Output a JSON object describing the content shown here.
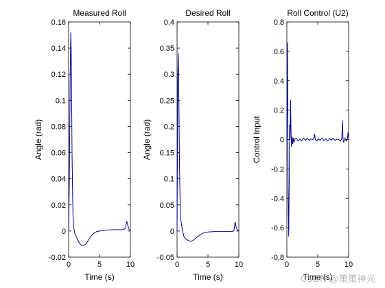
{
  "chart_data": [
    {
      "type": "line",
      "title": "Measured Roll",
      "xlabel": "Time (s)",
      "ylabel": "Angle (rad)",
      "xlim": [
        0,
        10
      ],
      "ylim": [
        -0.02,
        0.16
      ],
      "xticks": [
        0,
        5,
        10
      ],
      "yticks": [
        -0.02,
        0,
        0.02,
        0.04,
        0.06,
        0.08,
        0.1,
        0.12,
        0.14,
        0.16
      ],
      "ytick_labels": [
        "-0.02",
        "0",
        "0.02",
        "0.04",
        "0.06",
        "0.08",
        "0.1",
        "0.12",
        "0.14",
        "0.16"
      ],
      "grid": false,
      "series": [
        {
          "color": "#00008b",
          "x": [
            0,
            0.12,
            0.25,
            0.35,
            0.45,
            0.55,
            0.7,
            0.85,
            1.0,
            1.3,
            1.7,
            2.1,
            2.5,
            2.8,
            3.2,
            3.6,
            4.0,
            4.5,
            5.0,
            6.0,
            7.0,
            8.0,
            8.8,
            9.2,
            9.4,
            9.6,
            9.8,
            10.0
          ],
          "y": [
            0,
            0.04,
            0.12,
            0.152,
            0.13,
            0.06,
            0.012,
            0.002,
            -0.002,
            -0.005,
            -0.009,
            -0.011,
            -0.011,
            -0.01,
            -0.007,
            -0.004,
            -0.002,
            -0.0005,
            0,
            0.0005,
            0.001,
            0.001,
            0.001,
            0.002,
            0.0075,
            0.004,
            0.001,
            0.0005
          ]
        }
      ]
    },
    {
      "type": "line",
      "title": "Desired Roll",
      "xlabel": "Time (s)",
      "ylabel": "Angle (rad)",
      "xlim": [
        0,
        10
      ],
      "ylim": [
        -0.05,
        0.4
      ],
      "xticks": [
        0,
        5,
        10
      ],
      "yticks": [
        -0.05,
        0,
        0.05,
        0.1,
        0.15,
        0.2,
        0.25,
        0.3,
        0.35,
        0.4
      ],
      "ytick_labels": [
        "-0.05",
        "0",
        "0.05",
        "0.1",
        "0.15",
        "0.2",
        "0.25",
        "0.3",
        "0.35",
        "0.4"
      ],
      "grid": false,
      "series": [
        {
          "color": "#00008b",
          "x": [
            0,
            0.12,
            0.2,
            0.3,
            0.4,
            0.5,
            0.62,
            0.75,
            0.9,
            1.1,
            1.4,
            1.8,
            2.2,
            2.6,
            3.0,
            3.4,
            3.8,
            4.2,
            4.6,
            5.0,
            6.0,
            7.0,
            8.0,
            8.8,
            9.2,
            9.4,
            9.6,
            9.8,
            10.0
          ],
          "y": [
            0,
            0.29,
            0.34,
            0.25,
            0.12,
            0.05,
            0.02,
            0.01,
            0.0,
            -0.01,
            -0.015,
            -0.018,
            -0.02,
            -0.018,
            -0.014,
            -0.01,
            -0.007,
            -0.004,
            -0.003,
            -0.002,
            -0.001,
            -0.001,
            -0.001,
            -0.001,
            0.0,
            0.018,
            0.006,
            0.002,
            0.0
          ]
        }
      ]
    },
    {
      "type": "line",
      "title": "Roll Control (U2)",
      "xlabel": "Time (s)",
      "ylabel": "Control Input",
      "xlim": [
        0,
        10
      ],
      "ylim": [
        -0.8,
        0.8
      ],
      "xticks": [
        0,
        5,
        10
      ],
      "yticks": [
        -0.8,
        -0.6,
        -0.4,
        -0.2,
        0,
        0.2,
        0.4,
        0.6,
        0.8
      ],
      "ytick_labels": [
        "-0.8",
        "-0.6",
        "-0.4",
        "-0.2",
        "0",
        "0.2",
        "0.4",
        "0.6",
        "0.8"
      ],
      "grid": false,
      "series": [
        {
          "color": "#00008b",
          "x": [
            0,
            0.05,
            0.1,
            0.15,
            0.22,
            0.3,
            0.38,
            0.45,
            0.52,
            0.6,
            0.68,
            0.75,
            0.85,
            0.95,
            1.05,
            1.15,
            1.25,
            1.5,
            1.8,
            2.1,
            2.4,
            2.7,
            3.0,
            3.3,
            3.6,
            3.9,
            4.2,
            4.4,
            4.5,
            4.6,
            4.8,
            5.1,
            5.4,
            5.7,
            6.0,
            6.3,
            6.6,
            6.9,
            7.2,
            7.5,
            7.8,
            8.1,
            8.4,
            8.7,
            8.9,
            9.0,
            9.1,
            9.2,
            9.4,
            9.6,
            9.8,
            9.9,
            10.0
          ],
          "y": [
            0,
            0.3,
            0.66,
            0.2,
            -0.4,
            -0.66,
            -0.3,
            0.1,
            0.0,
            0.27,
            0.05,
            -0.05,
            0.02,
            -0.03,
            0.01,
            -0.02,
            0.0,
            0.01,
            -0.01,
            0.005,
            -0.01,
            0.01,
            -0.005,
            0.008,
            -0.006,
            0.004,
            0.0,
            0.01,
            0.04,
            0.0,
            -0.01,
            0.005,
            -0.005,
            0.01,
            -0.008,
            0.005,
            -0.01,
            0.006,
            -0.004,
            0.008,
            -0.006,
            0.003,
            0.0,
            -0.01,
            0.01,
            0.13,
            0.0,
            -0.02,
            0.01,
            -0.01,
            0.0,
            0.05,
            0.01
          ]
        }
      ]
    }
  ],
  "watermark": "CSDN @策策神光"
}
